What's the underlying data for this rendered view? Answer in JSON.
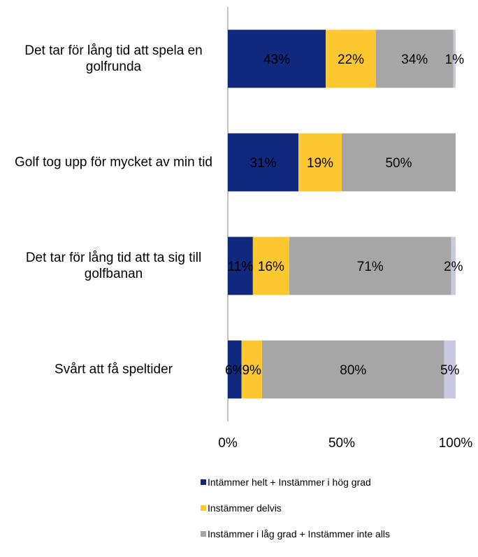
{
  "chart_data": {
    "type": "stacked_bar_horizontal",
    "categories": [
      "Det tar för lång tid att spela en golfrunda",
      "Golf tog upp för mycket av min tid",
      "Det tar för lång tid att ta sig till golfbanan",
      "Svårt att få speltider"
    ],
    "series": [
      {
        "name": "Intämmer helt + Instämmer i hög grad",
        "color": "#10287e",
        "values": [
          43,
          31,
          11,
          6
        ],
        "value_labels": [
          "43%",
          "31%",
          "11%",
          "6%"
        ]
      },
      {
        "name": "Instämmer delvis",
        "color": "#fdc82f",
        "values": [
          22,
          19,
          16,
          9
        ],
        "value_labels": [
          "22%",
          "19%",
          "16%",
          "9%"
        ]
      },
      {
        "name": "Instämmer i låg grad + Instämmer inte alls",
        "color": "#a6a6a6",
        "values": [
          34,
          50,
          71,
          80
        ],
        "value_labels": [
          "34%",
          "50%",
          "71%",
          "80%"
        ]
      },
      {
        "color": "#c8c8e0",
        "values": [
          1,
          null,
          2,
          5
        ],
        "value_labels": [
          "1%",
          null,
          "2%",
          "5%"
        ]
      }
    ],
    "xlim": [
      0,
      100
    ],
    "xticks": [
      {
        "value": 0,
        "label": "0%"
      },
      {
        "value": 50,
        "label": "50%"
      },
      {
        "value": 100,
        "label": "100%"
      }
    ]
  }
}
